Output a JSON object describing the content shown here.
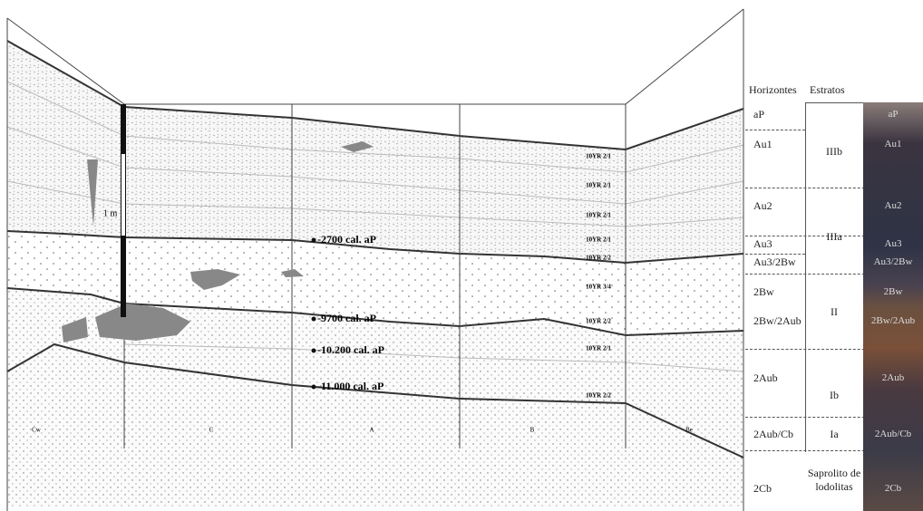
{
  "scale_label": "1 m",
  "wall_labels": [
    "Cw",
    "C",
    "A",
    "B",
    "Be"
  ],
  "dates": [
    "-2700 cal. aP",
    "-9700 cal. aP",
    "-10.200 cal. aP",
    "-11.000 cal. aP"
  ],
  "munsell": [
    "10YR 2/1",
    "10YR 2/1",
    "10YR 2/1",
    "10YR 2/1",
    "10YR 2/2",
    "10YR 3/4",
    "10YR 2/2",
    "10YR 2/1",
    "10YR 2/2"
  ],
  "table": {
    "headers": [
      "Horizontes",
      "Estratos"
    ],
    "horizons": [
      "aP",
      "Au1",
      "Au2",
      "Au3",
      "Au3/2Bw",
      "2Bw",
      "2Bw/2Aub",
      "2Aub",
      "2Aub/Cb",
      "2Cb"
    ],
    "strata": [
      "IIIb",
      "IIIa",
      "II",
      "Ib",
      "Ia",
      "Saprolito de lodolitas"
    ],
    "photo_labels": [
      "aP",
      "Au1",
      "Au2",
      "Au3",
      "Au3/2Bw",
      "2Bw",
      "2Bw/2Aub",
      "2Aub",
      "2Aub/Cb",
      "2Cb"
    ]
  }
}
